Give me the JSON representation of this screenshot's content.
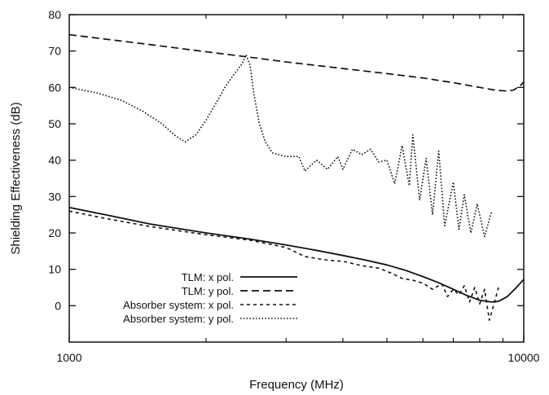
{
  "chart_data": {
    "type": "line",
    "title": "",
    "xlabel": "Frequency (MHz)",
    "ylabel": "Shielding Effectiveness (dB)",
    "xscale": "log",
    "xlim": [
      1000,
      10000
    ],
    "ylim": [
      -10,
      80
    ],
    "x_ticks": [
      1000,
      10000
    ],
    "x_tick_labels": [
      "1000",
      "10000"
    ],
    "y_ticks": [
      0,
      10,
      20,
      30,
      40,
      50,
      60,
      70,
      80
    ],
    "y_tick_labels": [
      "0",
      "10",
      "20",
      "30",
      "40",
      "50",
      "60",
      "70",
      "80"
    ],
    "grid": false,
    "legend_position": "bottom-left",
    "series": [
      {
        "name": "TLM: x pol.",
        "style": "solid",
        "points": [
          [
            1000,
            27
          ],
          [
            1200,
            25
          ],
          [
            1500,
            22.5
          ],
          [
            2000,
            20
          ],
          [
            2500,
            18.3
          ],
          [
            3000,
            16.7
          ],
          [
            3500,
            15.2
          ],
          [
            4000,
            13.8
          ],
          [
            4500,
            12.5
          ],
          [
            5000,
            11.2
          ],
          [
            5500,
            9.7
          ],
          [
            6000,
            8.0
          ],
          [
            6500,
            6.3
          ],
          [
            7000,
            4.5
          ],
          [
            7500,
            2.8
          ],
          [
            8000,
            1.5
          ],
          [
            8500,
            1.0
          ],
          [
            8800,
            1.2
          ],
          [
            9200,
            2.5
          ],
          [
            9600,
            4.8
          ],
          [
            10000,
            7.2
          ]
        ]
      },
      {
        "name": "TLM: y pol.",
        "style": "dashed",
        "points": [
          [
            1000,
            74.5
          ],
          [
            1500,
            71.8
          ],
          [
            2000,
            69.8
          ],
          [
            2500,
            68.3
          ],
          [
            3000,
            67.0
          ],
          [
            4000,
            65.2
          ],
          [
            5000,
            63.8
          ],
          [
            6000,
            62.6
          ],
          [
            7000,
            61.3
          ],
          [
            8000,
            60.0
          ],
          [
            8700,
            59.2
          ],
          [
            9200,
            59.0
          ],
          [
            9500,
            59.3
          ],
          [
            9800,
            60.3
          ],
          [
            10000,
            61.5
          ]
        ]
      },
      {
        "name": "Absorber system: x pol.",
        "style": "dashed-short",
        "points": [
          [
            1000,
            26
          ],
          [
            1200,
            24
          ],
          [
            1500,
            21.8
          ],
          [
            2000,
            19.5
          ],
          [
            2500,
            18.0
          ],
          [
            3000,
            16.0
          ],
          [
            3300,
            13.5
          ],
          [
            3700,
            12.5
          ],
          [
            4000,
            12.2
          ],
          [
            4400,
            11.0
          ],
          [
            4800,
            10.3
          ],
          [
            5100,
            9.0
          ],
          [
            5400,
            7.5
          ],
          [
            5700,
            7.0
          ],
          [
            6000,
            6.2
          ],
          [
            6300,
            4.5
          ],
          [
            6600,
            6.0
          ],
          [
            6800,
            2.5
          ],
          [
            7000,
            4.5
          ],
          [
            7200,
            3.0
          ],
          [
            7400,
            5.5
          ],
          [
            7600,
            1.0
          ],
          [
            7800,
            5.0
          ],
          [
            8000,
            0.5
          ],
          [
            8200,
            4.5
          ],
          [
            8400,
            -4.0
          ],
          [
            8600,
            0.5
          ],
          [
            8800,
            5.0
          ]
        ]
      },
      {
        "name": "Absorber system: y pol.",
        "style": "dotted",
        "points": [
          [
            1000,
            60
          ],
          [
            1150,
            58.5
          ],
          [
            1300,
            56.5
          ],
          [
            1450,
            53.5
          ],
          [
            1600,
            50.0
          ],
          [
            1700,
            47.0
          ],
          [
            1800,
            45.0
          ],
          [
            1900,
            47.0
          ],
          [
            2000,
            51.0
          ],
          [
            2100,
            55.5
          ],
          [
            2200,
            60.0
          ],
          [
            2300,
            63.5
          ],
          [
            2400,
            66.5
          ],
          [
            2450,
            69.0
          ],
          [
            2500,
            66.0
          ],
          [
            2550,
            58.0
          ],
          [
            2620,
            50.0
          ],
          [
            2700,
            45.0
          ],
          [
            2800,
            42.0
          ],
          [
            3000,
            41.0
          ],
          [
            3200,
            41.0
          ],
          [
            3300,
            37.0
          ],
          [
            3500,
            40.0
          ],
          [
            3700,
            37.5
          ],
          [
            3900,
            41.0
          ],
          [
            4000,
            37.5
          ],
          [
            4200,
            43.0
          ],
          [
            4400,
            41.5
          ],
          [
            4600,
            43.0
          ],
          [
            4800,
            39.5
          ],
          [
            5000,
            40.0
          ],
          [
            5200,
            33.5
          ],
          [
            5400,
            44.0
          ],
          [
            5600,
            33.0
          ],
          [
            5700,
            47.0
          ],
          [
            5900,
            29.0
          ],
          [
            6100,
            40.5
          ],
          [
            6300,
            25.0
          ],
          [
            6500,
            42.5
          ],
          [
            6700,
            22.0
          ],
          [
            7000,
            34.0
          ],
          [
            7200,
            21.0
          ],
          [
            7400,
            30.5
          ],
          [
            7650,
            20.0
          ],
          [
            7900,
            28.0
          ],
          [
            8200,
            19.0
          ],
          [
            8500,
            26.0
          ]
        ]
      }
    ]
  }
}
